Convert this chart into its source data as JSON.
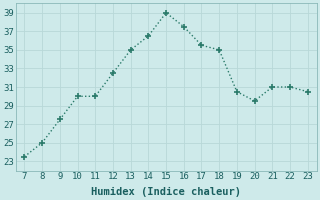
{
  "x": [
    7,
    8,
    9,
    10,
    11,
    12,
    13,
    14,
    15,
    16,
    17,
    18,
    19,
    20,
    21,
    22,
    23
  ],
  "y": [
    23.5,
    25.0,
    27.5,
    30.0,
    30.0,
    32.5,
    35.0,
    36.5,
    39.0,
    37.5,
    35.5,
    35.0,
    30.5,
    29.5,
    31.0,
    31.0,
    30.5
  ],
  "line_color": "#2a7a6a",
  "marker": "P",
  "marker_size": 3,
  "bg_color": "#ceeaea",
  "grid_color": "#b8d8d8",
  "xlabel": "Humidex (Indice chaleur)",
  "xlim": [
    6.5,
    23.5
  ],
  "ylim": [
    22,
    40
  ],
  "yticks": [
    23,
    25,
    27,
    29,
    31,
    33,
    35,
    37,
    39
  ],
  "xticks": [
    7,
    8,
    9,
    10,
    11,
    12,
    13,
    14,
    15,
    16,
    17,
    18,
    19,
    20,
    21,
    22,
    23
  ],
  "xlabel_fontsize": 7.5,
  "tick_fontsize": 6.5,
  "line_width": 1.0,
  "tick_color": "#1a5f5f",
  "label_color": "#1a5f5f",
  "spine_color": "#8ab8b8"
}
